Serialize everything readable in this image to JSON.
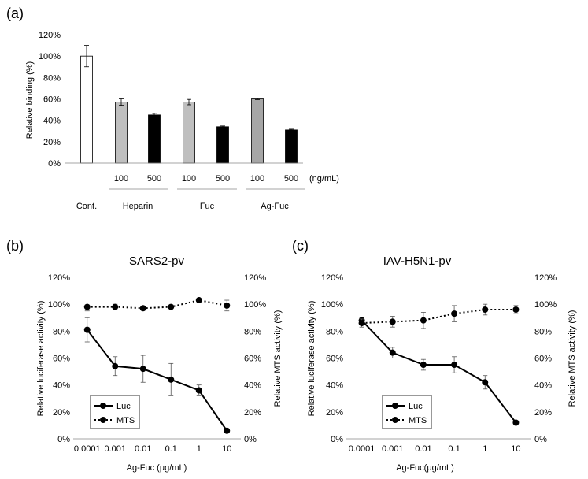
{
  "chart_data": [
    {
      "panel_label": "(a)",
      "type": "bar",
      "ylabel": "Relative binding (%)",
      "ylim": [
        0,
        120
      ],
      "yticks": [
        "0%",
        "20%",
        "40%",
        "60%",
        "80%",
        "100%",
        "120%"
      ],
      "bars": [
        {
          "name": "Cont.",
          "label": "",
          "value": 100,
          "err": 10,
          "color": "#ffffff"
        },
        {
          "name": "Heparin-100",
          "label": "100",
          "value": 57,
          "err": 3,
          "color": "#bfbfbf"
        },
        {
          "name": "Heparin-500",
          "label": "500",
          "value": 45,
          "err": 1.5,
          "color": "#000000"
        },
        {
          "name": "Fuc-100",
          "label": "100",
          "value": 57,
          "err": 2.5,
          "color": "#bfbfbf"
        },
        {
          "name": "Fuc-500",
          "label": "500",
          "value": 34,
          "err": 0.7,
          "color": "#000000"
        },
        {
          "name": "Ag-Fuc-100",
          "label": "100",
          "value": 60,
          "err": 0.7,
          "color": "#a6a6a6"
        },
        {
          "name": "Ag-Fuc-500",
          "label": "500",
          "value": 31,
          "err": 0.7,
          "color": "#000000"
        }
      ],
      "unit_label": "(ng/mL)",
      "groups": [
        "Cont.",
        "Heparin",
        "Fuc",
        "Ag-Fuc"
      ]
    },
    {
      "panel_label": "(b)",
      "type": "line",
      "title": "SARS2-pv",
      "xlabel": "Ag-Fuc (μg/mL)",
      "ylabel": "Relative luciferase activity (%)",
      "y2label": "Relative MTS activity (%)",
      "categories": [
        "0.0001",
        "0.001",
        "0.01",
        "0.1",
        "1",
        "10"
      ],
      "ylim": [
        0,
        120
      ],
      "yticks": [
        "0%",
        "20%",
        "40%",
        "60%",
        "80%",
        "100%",
        "120%"
      ],
      "series": [
        {
          "name": "Luc",
          "style": "solid",
          "values": [
            81,
            54,
            52,
            44,
            36,
            6
          ],
          "errors": [
            9,
            7,
            10,
            12,
            4,
            0
          ]
        },
        {
          "name": "MTS",
          "style": "dotted",
          "values": [
            98,
            98,
            97,
            98,
            103,
            99
          ],
          "errors": [
            3,
            2,
            1,
            1,
            1,
            4
          ]
        }
      ]
    },
    {
      "panel_label": "(c)",
      "type": "line",
      "title": "IAV-H5N1-pv",
      "xlabel": "Ag-Fuc(μg/mL)",
      "ylabel": "Relative luciferase activity (%)",
      "y2label": "Relative MTS activity (%)",
      "categories": [
        "0.0001",
        "0.001",
        "0.01",
        "0.1",
        "1",
        "10"
      ],
      "ylim": [
        0,
        120
      ],
      "yticks": [
        "0%",
        "20%",
        "40%",
        "60%",
        "80%",
        "100%",
        "120%"
      ],
      "series": [
        {
          "name": "Luc",
          "style": "solid",
          "values": [
            88,
            64,
            55,
            55,
            42,
            12
          ],
          "errors": [
            2,
            4,
            4,
            6,
            5,
            0
          ]
        },
        {
          "name": "MTS",
          "style": "dotted",
          "values": [
            86,
            87,
            88,
            93,
            96,
            96
          ],
          "errors": [
            3,
            4,
            6,
            6,
            4,
            3
          ]
        }
      ]
    }
  ]
}
